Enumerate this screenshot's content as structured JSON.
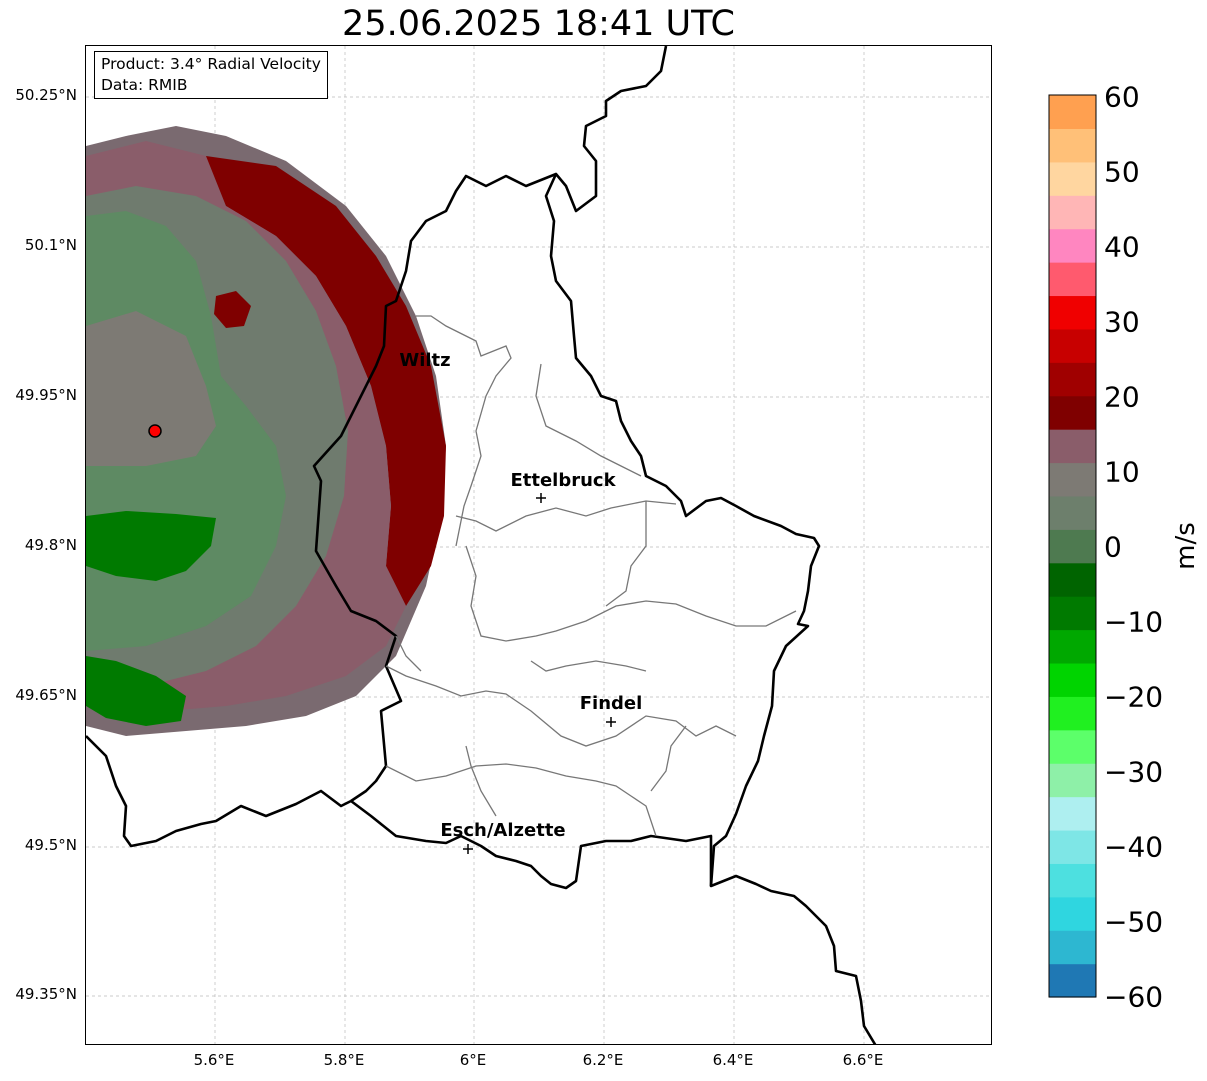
{
  "title": "25.06.2025 18:41 UTC",
  "info_box": {
    "product": "Product: 3.4° Radial Velocity",
    "data": "Data: RMIB"
  },
  "map": {
    "lon_labels": [
      "5.6°E",
      "5.8°E",
      "6°E",
      "6.2°E",
      "6.4°E",
      "6.6°E"
    ],
    "lat_labels": [
      "50.25°N",
      "50.1°N",
      "49.95°N",
      "49.8°N",
      "49.65°N",
      "49.5°N",
      "49.35°N"
    ],
    "cities": [
      {
        "name": "Wiltz"
      },
      {
        "name": "Ettelbruck"
      },
      {
        "name": "Findel"
      },
      {
        "name": "Esch/Alzette"
      }
    ],
    "radar_site_marker": "red-circle",
    "colors": {
      "receding_dark_red": "#7f0000",
      "muted_mauve": "#8a5d6a",
      "near_zero_grey": "#7d7a74",
      "approaching_green": "#007a00",
      "light_green": "#5a8a63",
      "radar_site": "#ff0000"
    }
  },
  "colorbar": {
    "ticks": [
      "60",
      "50",
      "40",
      "30",
      "20",
      "10",
      "0",
      "−10",
      "−20",
      "−30",
      "−40",
      "−50",
      "−60"
    ],
    "unit": "m/s",
    "range": [
      -60,
      60
    ],
    "colors": [
      "#1f78b4",
      "#2db7d1",
      "#2fd6e0",
      "#4de0e0",
      "#7ee6e6",
      "#aeeff0",
      "#8ef0a8",
      "#5cff6a",
      "#20f020",
      "#00d400",
      "#00a800",
      "#007a00",
      "#006400",
      "#4e7a50",
      "#6d7f6c",
      "#7d7a74",
      "#8a5d6a",
      "#7f0000",
      "#a00000",
      "#c80000",
      "#f00000",
      "#ff5a6e",
      "#ff86c0",
      "#ffb6b6",
      "#ffd6a0",
      "#ffc078",
      "#ffa050"
    ]
  }
}
